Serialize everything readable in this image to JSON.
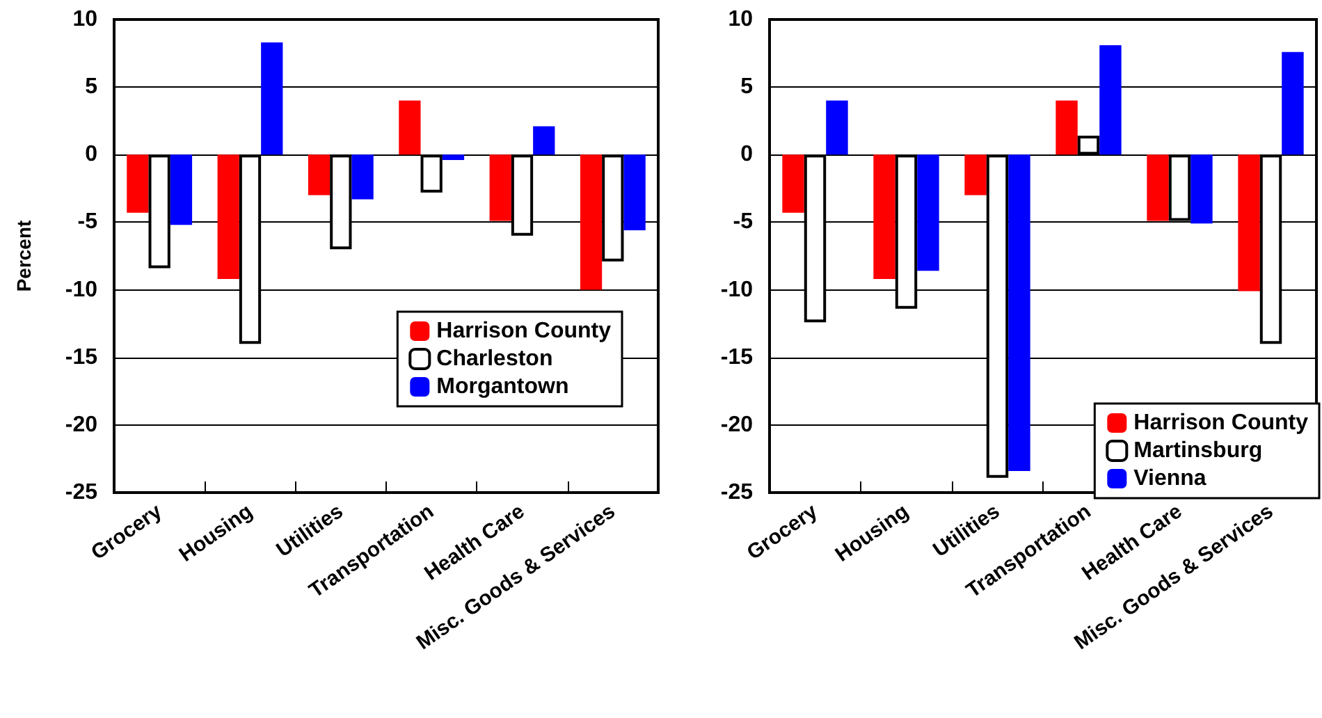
{
  "chart_data": [
    {
      "type": "bar",
      "ylabel": "Percent",
      "categories": [
        "Grocery",
        "Housing",
        "Utilities",
        "Transportation",
        "Health Care",
        "Misc. Goods & Services"
      ],
      "ylim": [
        -25,
        10
      ],
      "yticks": [
        -25,
        -20,
        -15,
        -10,
        -5,
        0,
        5,
        10
      ],
      "grid": "y",
      "legend": "center right",
      "series": [
        {
          "name": "Harrison County",
          "color": "#ff0000",
          "values": [
            -4.3,
            -9.2,
            -3.0,
            4.0,
            -4.9,
            -10.0
          ]
        },
        {
          "name": "Charleston",
          "color": "#ffffff",
          "values": [
            -8.4,
            -14.0,
            -7.0,
            -2.8,
            -6.0,
            -7.9
          ]
        },
        {
          "name": "Morgantown",
          "color": "#0000ff",
          "values": [
            -5.2,
            8.3,
            -3.3,
            -0.4,
            2.1,
            -5.6
          ]
        }
      ]
    },
    {
      "type": "bar",
      "categories": [
        "Grocery",
        "Housing",
        "Utilities",
        "Transportation",
        "Health Care",
        "Misc. Goods & Services"
      ],
      "ylim": [
        -25,
        10
      ],
      "yticks": [
        -25,
        -20,
        -15,
        -10,
        -5,
        0,
        5,
        10
      ],
      "grid": "y",
      "legend": "bottom right",
      "series": [
        {
          "name": "Harrison County",
          "color": "#ff0000",
          "values": [
            -4.3,
            -9.2,
            -3.0,
            4.0,
            -4.9,
            -10.1
          ]
        },
        {
          "name": "Martinsburg",
          "color": "#ffffff",
          "values": [
            -12.4,
            -11.4,
            -23.9,
            1.4,
            -4.9,
            -14.0
          ]
        },
        {
          "name": "Vienna",
          "color": "#0000ff",
          "values": [
            4.0,
            -8.6,
            -23.4,
            8.1,
            -5.1,
            7.6
          ]
        }
      ]
    }
  ]
}
